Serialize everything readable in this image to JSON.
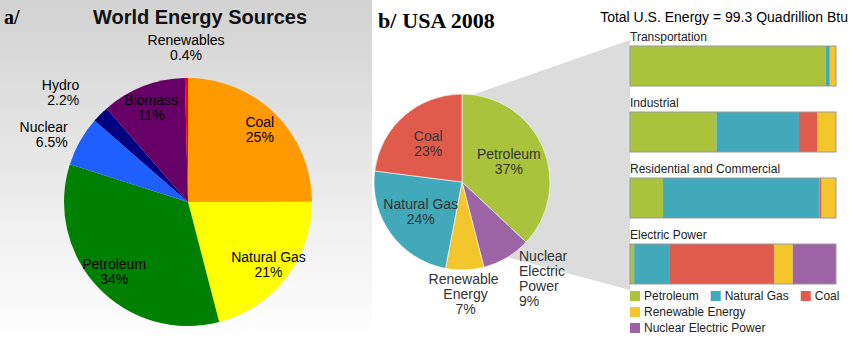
{
  "chart_data": [
    {
      "type": "pie",
      "annotations": [
        "a/"
      ],
      "title": "World Energy Sources",
      "categories": [
        "Coal",
        "Natural Gas",
        "Petroleum",
        "Nuclear",
        "Hydro",
        "Biomass",
        "Renewables"
      ],
      "values": [
        25,
        21,
        34,
        6.5,
        2.2,
        11,
        0.4
      ],
      "value_labels": [
        "25%",
        "21%",
        "34%",
        "6.5%",
        "2.2%",
        "11%",
        "0.4%"
      ],
      "colors": [
        "#ff9900",
        "#ffff00",
        "#008000",
        "#1f5fff",
        "#000080",
        "#660066",
        "#ff0000"
      ],
      "data_labels": true
    },
    {
      "type": "pie",
      "annotations": [
        "b/"
      ],
      "title": "USA 2008",
      "subtitle": "Total U.S. Energy = 99.3 Quadrillion Btu",
      "categories": [
        "Petroleum",
        "Nuclear Electric Power",
        "Renewable Energy",
        "Natural Gas",
        "Coal"
      ],
      "values": [
        37,
        9,
        7,
        24,
        23
      ],
      "value_labels": [
        "37%",
        "9%",
        "7%",
        "24%",
        "23%"
      ],
      "colors": [
        "#aac23c",
        "#9c64a4",
        "#f3c62c",
        "#41a9b9",
        "#e05b4b"
      ],
      "data_labels": true
    },
    {
      "type": "bar",
      "orientation": "horizontal",
      "stacked": true,
      "categories": [
        "Transportation",
        "Industrial",
        "Residential and Commercial",
        "Electric Power"
      ],
      "series": [
        {
          "name": "Petroleum",
          "color": "#aac23c",
          "values": [
            95,
            42,
            16,
            2
          ]
        },
        {
          "name": "Natural Gas",
          "color": "#41a9b9",
          "values": [
            2,
            40,
            76,
            17
          ]
        },
        {
          "name": "Coal",
          "color": "#e05b4b",
          "values": [
            0,
            9,
            1,
            51
          ]
        },
        {
          "name": "Renewable Energy",
          "color": "#f3c62c",
          "values": [
            3,
            9,
            7,
            9
          ]
        },
        {
          "name": "Nuclear Electric Power",
          "color": "#9c64a4",
          "values": [
            0,
            0,
            0,
            21
          ]
        }
      ],
      "xlim": [
        0,
        100
      ],
      "legend": "bottom"
    }
  ]
}
